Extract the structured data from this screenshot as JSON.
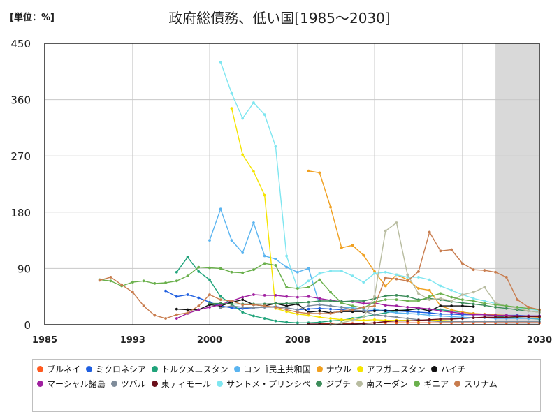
{
  "unit_label": "[単位：%]",
  "chart_data": {
    "type": "line",
    "title": "政府総債務、低い国[1985～2030]",
    "xlabel": "",
    "ylabel": "",
    "xlim": [
      1985,
      2030
    ],
    "ylim": [
      0,
      450
    ],
    "x_ticks": [
      1985,
      1993,
      2000,
      2008,
      2015,
      2023,
      2030
    ],
    "y_ticks": [
      0,
      90,
      180,
      270,
      360,
      450
    ],
    "forecast_region": {
      "start": 2026,
      "end": 2030,
      "color": "#d9d9d9"
    },
    "grid": true,
    "legend_position": "bottom",
    "series": [
      {
        "name": "ブルネイ",
        "color": "#ff5a1f",
        "x": [
          2010,
          2011,
          2012,
          2013,
          2014,
          2015,
          2016,
          2017,
          2018,
          2019,
          2020,
          2021,
          2022,
          2023,
          2024,
          2025,
          2026,
          2027,
          2028,
          2029,
          2030
        ],
        "y": [
          2,
          2,
          2,
          2,
          2,
          3,
          3,
          3,
          3,
          3,
          3,
          3,
          3,
          3,
          3,
          3,
          3,
          3,
          3,
          3,
          3
        ]
      },
      {
        "name": "ミクロネシア",
        "color": "#1f5fe0",
        "x": [
          1996,
          1997,
          1998,
          1999,
          2000,
          2001,
          2002,
          2003,
          2004,
          2005,
          2006,
          2007,
          2008,
          2009,
          2010,
          2011,
          2012,
          2013,
          2014,
          2015,
          2016,
          2017,
          2018,
          2019,
          2020,
          2021,
          2022,
          2023,
          2024,
          2025,
          2026,
          2027,
          2028,
          2029,
          2030
        ],
        "y": [
          54,
          45,
          48,
          43,
          36,
          30,
          27,
          26,
          27,
          28,
          29,
          27,
          24,
          25,
          26,
          25,
          24,
          22,
          22,
          23,
          23,
          22,
          21,
          20,
          19,
          17,
          17,
          16,
          16,
          16,
          15,
          15,
          15,
          14,
          14
        ]
      },
      {
        "name": "トルクメニスタン",
        "color": "#1fa37a",
        "x": [
          1997,
          1998,
          1999,
          2000,
          2001,
          2002,
          2003,
          2004,
          2005,
          2006,
          2007,
          2008,
          2009,
          2010,
          2011,
          2012,
          2013,
          2014,
          2015,
          2016,
          2017,
          2018,
          2019,
          2020,
          2021,
          2022,
          2023,
          2024,
          2025,
          2026,
          2027,
          2028,
          2029,
          2030
        ],
        "y": [
          84,
          108,
          85,
          72,
          45,
          33,
          20,
          14,
          10,
          6,
          4,
          3,
          3,
          4,
          6,
          7,
          10,
          13,
          16,
          19,
          22,
          24,
          25,
          25,
          24,
          22,
          20,
          18,
          16,
          14,
          12,
          11,
          10,
          9
        ]
      },
      {
        "name": "コンゴ民主共和国",
        "color": "#5ab4f0",
        "x": [
          2000,
          2001,
          2002,
          2003,
          2004,
          2005,
          2006,
          2007,
          2008,
          2009,
          2010,
          2011,
          2012,
          2013,
          2014,
          2015,
          2016,
          2017,
          2018,
          2019,
          2020,
          2021,
          2022,
          2023,
          2024,
          2025,
          2026,
          2027,
          2028,
          2029,
          2030
        ],
        "y": [
          135,
          185,
          135,
          115,
          163,
          110,
          105,
          92,
          84,
          90,
          32,
          30,
          28,
          27,
          25,
          25,
          21,
          19,
          18,
          17,
          15,
          14,
          13,
          12,
          11,
          11,
          10,
          10,
          10,
          10,
          10
        ]
      },
      {
        "name": "ナウル",
        "color": "#f0a020",
        "x": [
          2009,
          2010,
          2011,
          2012,
          2013,
          2014,
          2015,
          2016,
          2017,
          2018,
          2019,
          2020,
          2021,
          2022,
          2023,
          2024,
          2025,
          2026,
          2027,
          2028,
          2029,
          2030
        ],
        "y": [
          246,
          243,
          188,
          123,
          127,
          111,
          85,
          62,
          80,
          72,
          58,
          55,
          30,
          24,
          20,
          18,
          17,
          16,
          15,
          14,
          13,
          12
        ]
      },
      {
        "name": "アフガニスタン",
        "color": "#f5e400",
        "x": [
          2002,
          2003,
          2004,
          2005,
          2006,
          2007,
          2008,
          2009,
          2010,
          2011,
          2012,
          2013,
          2014,
          2015,
          2016,
          2017,
          2018,
          2019,
          2020,
          2021,
          2022
        ],
        "y": [
          346,
          272,
          245,
          207,
          26,
          21,
          17,
          15,
          12,
          10,
          8,
          8,
          7,
          8,
          7,
          7,
          7,
          6,
          7,
          7,
          6
        ]
      },
      {
        "name": "ハイチ",
        "color": "#111111",
        "x": [
          1997,
          1998,
          1999,
          2000,
          2001,
          2002,
          2003,
          2004,
          2005,
          2006,
          2007,
          2008,
          2009,
          2010,
          2011,
          2012,
          2013,
          2014,
          2015,
          2016,
          2017,
          2018,
          2019,
          2020,
          2021,
          2022,
          2023,
          2024
        ],
        "y": [
          25,
          24,
          24,
          32,
          30,
          36,
          40,
          32,
          30,
          34,
          30,
          33,
          20,
          22,
          19,
          21,
          21,
          21,
          22,
          22,
          23,
          23,
          26,
          22,
          30,
          30,
          30,
          29
        ]
      },
      {
        "name": "マーシャル諸島",
        "color": "#a020a0",
        "x": [
          1997,
          1998,
          1999,
          2000,
          2001,
          2002,
          2003,
          2004,
          2005,
          2006,
          2007,
          2008,
          2009,
          2010,
          2011,
          2012,
          2013,
          2014,
          2015,
          2016,
          2017,
          2018,
          2019,
          2020,
          2021,
          2022,
          2023,
          2024,
          2025,
          2026,
          2027,
          2028,
          2029,
          2030
        ],
        "y": [
          10,
          18,
          24,
          28,
          32,
          38,
          44,
          48,
          47,
          47,
          45,
          44,
          45,
          42,
          39,
          37,
          37,
          34,
          35,
          31,
          30,
          28,
          27,
          25,
          22,
          20,
          18,
          16,
          16,
          15,
          15,
          14,
          14,
          14
        ]
      },
      {
        "name": "ツバル",
        "color": "#7f8c9a",
        "x": [
          2001,
          2002,
          2003,
          2004,
          2005,
          2006,
          2007,
          2008,
          2009,
          2010,
          2011,
          2012,
          2013,
          2014,
          2015,
          2016,
          2017,
          2018,
          2019,
          2020,
          2021,
          2022,
          2023,
          2024,
          2025,
          2026,
          2027,
          2028,
          2029,
          2030
        ],
        "y": [
          27,
          30,
          28,
          27,
          28,
          28,
          27,
          24,
          30,
          32,
          30,
          28,
          24,
          22,
          16,
          14,
          12,
          10,
          8,
          6,
          5,
          5,
          5,
          5,
          5,
          5,
          5,
          5,
          5,
          5
        ]
      },
      {
        "name": "東ティモール",
        "color": "#6b0f1a",
        "x": [
          2009,
          2010,
          2011,
          2012,
          2013,
          2014,
          2015,
          2016,
          2017,
          2018,
          2019,
          2020,
          2021,
          2022,
          2023,
          2024,
          2025,
          2026,
          2027,
          2028,
          2029,
          2030
        ],
        "y": [
          1,
          1,
          1,
          1,
          1,
          2,
          3,
          5,
          6,
          6,
          7,
          8,
          9,
          9,
          10,
          11,
          12,
          12,
          12,
          13,
          13,
          13
        ]
      },
      {
        "name": "サントメ・プリンシペ",
        "color": "#7fe6f0",
        "x": [
          2001,
          2002,
          2003,
          2004,
          2005,
          2006,
          2007,
          2008,
          2009,
          2010,
          2011,
          2012,
          2013,
          2014,
          2015,
          2016,
          2017,
          2018,
          2019,
          2020,
          2021,
          2022,
          2023,
          2024,
          2025,
          2026,
          2027,
          2028,
          2029,
          2030
        ],
        "y": [
          420,
          370,
          330,
          355,
          336,
          285,
          110,
          58,
          70,
          82,
          86,
          86,
          78,
          68,
          82,
          84,
          80,
          76,
          76,
          72,
          62,
          55,
          48,
          42,
          38,
          34,
          30,
          27,
          25,
          23
        ]
      },
      {
        "name": "ジブチ",
        "color": "#3c8c5a",
        "x": [
          2000,
          2001,
          2002,
          2003,
          2004,
          2005,
          2006,
          2007,
          2008,
          2009,
          2010,
          2011,
          2012,
          2013,
          2014,
          2015,
          2016,
          2017,
          2018,
          2019,
          2020,
          2021,
          2022,
          2023,
          2024,
          2025,
          2026,
          2027,
          2028,
          2029,
          2030
        ],
        "y": [
          34,
          34,
          33,
          33,
          33,
          33,
          34,
          34,
          35,
          36,
          38,
          38,
          37,
          38,
          38,
          42,
          46,
          47,
          45,
          40,
          42,
          40,
          37,
          35,
          33,
          31,
          28,
          26,
          24,
          22,
          20
        ]
      },
      {
        "name": "南スーダン",
        "color": "#b8bca0",
        "x": [
          2011,
          2012,
          2013,
          2014,
          2015,
          2016,
          2017,
          2018,
          2019,
          2020,
          2021,
          2022,
          2023,
          2024,
          2025,
          2026,
          2027,
          2028,
          2029,
          2030
        ],
        "y": [
          0,
          3,
          7,
          12,
          45,
          150,
          163,
          80,
          50,
          40,
          42,
          38,
          48,
          52,
          60,
          35,
          30,
          26,
          22,
          20
        ]
      },
      {
        "name": "ギニア",
        "color": "#6ab04c",
        "x": [
          1990,
          1991,
          1992,
          1993,
          1994,
          1995,
          1996,
          1997,
          1998,
          1999,
          2000,
          2001,
          2002,
          2003,
          2004,
          2005,
          2006,
          2007,
          2008,
          2009,
          2010,
          2011,
          2012,
          2013,
          2014,
          2015,
          2016,
          2017,
          2018,
          2019,
          2020,
          2021,
          2022,
          2023,
          2024,
          2025,
          2026,
          2027,
          2028,
          2029,
          2030
        ],
        "y": [
          72,
          70,
          62,
          68,
          70,
          66,
          67,
          70,
          78,
          92,
          91,
          90,
          84,
          83,
          88,
          98,
          95,
          60,
          58,
          60,
          72,
          52,
          35,
          30,
          27,
          36,
          40,
          40,
          38,
          38,
          45,
          50,
          44,
          40,
          38,
          34,
          32,
          30,
          28,
          26,
          24
        ]
      },
      {
        "name": "スリナム",
        "color": "#c87c4e",
        "x": [
          1990,
          1991,
          1992,
          1993,
          1994,
          1995,
          1996,
          1997,
          1998,
          1999,
          2000,
          2001,
          2002,
          2003,
          2004,
          2005,
          2006,
          2007,
          2008,
          2009,
          2010,
          2011,
          2012,
          2013,
          2014,
          2015,
          2016,
          2017,
          2018,
          2019,
          2020,
          2021,
          2022,
          2023,
          2024,
          2025,
          2026,
          2027,
          2028,
          2029,
          2030
        ],
        "y": [
          71,
          76,
          64,
          52,
          30,
          15,
          10,
          16,
          19,
          30,
          48,
          40,
          38,
          32,
          32,
          30,
          28,
          24,
          20,
          18,
          18,
          18,
          22,
          24,
          28,
          30,
          75,
          73,
          70,
          85,
          148,
          118,
          120,
          98,
          88,
          87,
          84,
          76,
          40,
          28,
          24
        ]
      }
    ]
  }
}
